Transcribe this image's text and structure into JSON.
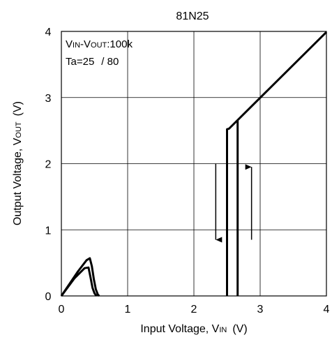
{
  "chart_data": {
    "type": "line",
    "title": "81N25",
    "xlabel": {
      "main": "Input Voltage, V",
      "sub": "IN",
      "unit": "(V)"
    },
    "ylabel": {
      "main": "Output Voltage, V",
      "sub": "OUT",
      "unit": "(V)"
    },
    "xlim": [
      0,
      4
    ],
    "ylim": [
      0,
      4
    ],
    "xticks": [
      0,
      1,
      2,
      3,
      4
    ],
    "yticks": [
      0,
      1,
      2,
      3,
      4
    ],
    "grid": true,
    "annotation": {
      "line1": {
        "v1": "V",
        "s1": "IN",
        "dash": "-V",
        "s2": "OUT",
        "rest": ":100k"
      },
      "line2": {
        "ta": "Ta=25",
        "other": "/ 80"
      }
    },
    "series": [
      {
        "values": [
          [
            0,
            0
          ],
          [
            0.2,
            0.27
          ],
          [
            0.35,
            0.42
          ],
          [
            0.41,
            0.43
          ],
          [
            0.44,
            0.28
          ],
          [
            0.47,
            0.12
          ],
          [
            0.5,
            0.04
          ],
          [
            0.53,
            0
          ]
        ]
      },
      {
        "values": [
          [
            0,
            0
          ],
          [
            0.25,
            0.37
          ],
          [
            0.38,
            0.54
          ],
          [
            0.43,
            0.57
          ],
          [
            0.46,
            0.45
          ],
          [
            0.49,
            0.25
          ],
          [
            0.52,
            0.1
          ],
          [
            0.55,
            0.02
          ],
          [
            0.57,
            0
          ]
        ]
      },
      {
        "values": [
          [
            2.5,
            0
          ],
          [
            2.5,
            2.52
          ],
          [
            2.53,
            2.53
          ],
          [
            4.0,
            3.99
          ]
        ]
      },
      {
        "values": [
          [
            2.66,
            0
          ],
          [
            2.66,
            2.65
          ]
        ]
      }
    ],
    "arrows": [
      {
        "direction": "down",
        "x": 2.33,
        "y_from": 2.0,
        "y_to": 0.85
      },
      {
        "direction": "up",
        "x": 2.87,
        "y_from": 0.85,
        "y_to": 1.95
      }
    ]
  }
}
